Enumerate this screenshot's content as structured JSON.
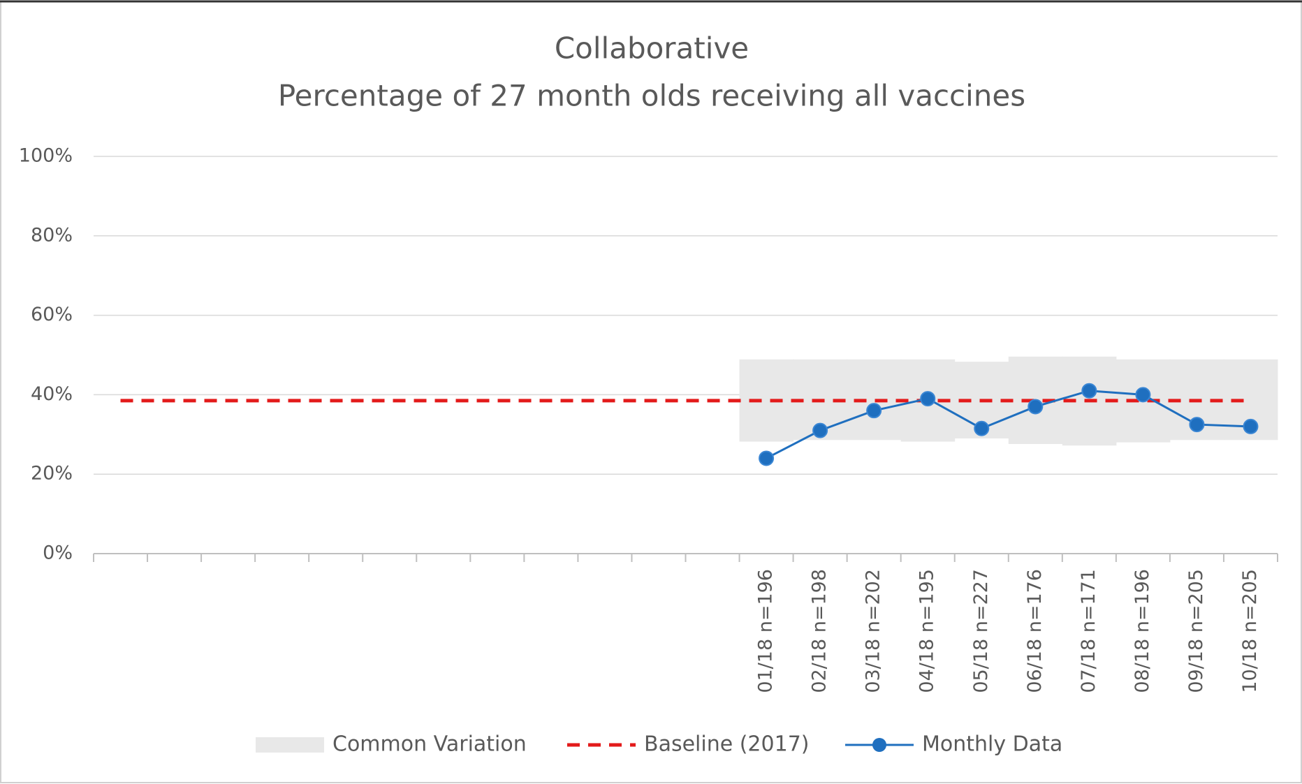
{
  "chart_data": {
    "type": "line",
    "title": "Collaborative",
    "subtitle": "Percentage of 27 month olds receiving all vaccines",
    "categories": [
      null,
      null,
      null,
      null,
      null,
      null,
      null,
      null,
      null,
      null,
      null,
      null,
      "01/18 n=196",
      "02/18 n=198",
      "03/18 n=202",
      "04/18 n=195",
      "05/18 n=227",
      "06/18 n=176",
      "07/18 n=171",
      "08/18 n=196",
      "09/18 n=205",
      "10/18 n=205"
    ],
    "ylim": [
      0,
      100
    ],
    "yticks": [
      {
        "value": 0,
        "label": "0%"
      },
      {
        "value": 20,
        "label": "20%"
      },
      {
        "value": 40,
        "label": "40%"
      },
      {
        "value": 60,
        "label": "60%"
      },
      {
        "value": 80,
        "label": "80%"
      },
      {
        "value": 100,
        "label": "100%"
      }
    ],
    "grid": true,
    "legend": "bottom",
    "series": [
      {
        "name": "Common Variation",
        "color": "#e8e8e8",
        "kind": "band",
        "low": [
          null,
          null,
          null,
          null,
          null,
          null,
          null,
          null,
          null,
          null,
          null,
          null,
          28.2,
          28.6,
          28.6,
          28.2,
          29,
          27.6,
          27.2,
          28,
          28.6,
          28.6
        ],
        "high": [
          null,
          null,
          null,
          null,
          null,
          null,
          null,
          null,
          null,
          null,
          null,
          null,
          48.9,
          48.9,
          48.9,
          48.9,
          48.3,
          49.6,
          49.6,
          48.9,
          48.9,
          48.9
        ]
      },
      {
        "name": "Baseline (2017)",
        "color": "#e31b1b",
        "kind": "dashed",
        "values": [
          38.5,
          38.5,
          38.5,
          38.5,
          38.5,
          38.5,
          38.5,
          38.5,
          38.5,
          38.5,
          38.5,
          38.5,
          38.5,
          38.5,
          38.5,
          38.5,
          38.5,
          38.5,
          38.5,
          38.5,
          38.5,
          38.5
        ]
      },
      {
        "name": "Monthly Data",
        "color": "#1f6fbf",
        "kind": "markers",
        "values": [
          null,
          null,
          null,
          null,
          null,
          null,
          null,
          null,
          null,
          null,
          null,
          null,
          24,
          31,
          36,
          39,
          31.5,
          37,
          41,
          40,
          32.5,
          32
        ]
      }
    ]
  }
}
